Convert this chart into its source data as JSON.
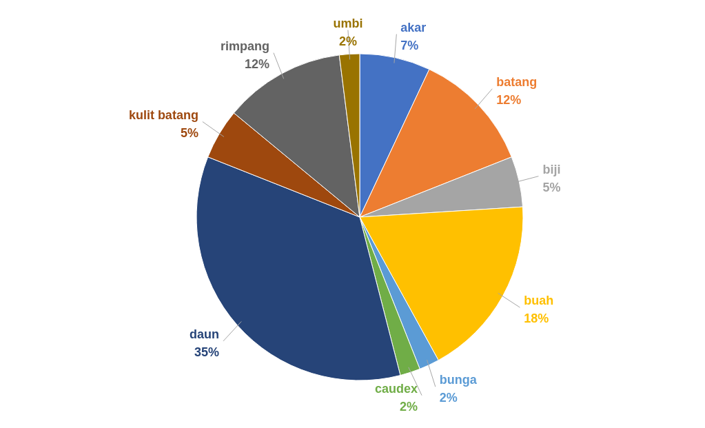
{
  "chart_data": {
    "type": "pie",
    "categories": [
      "akar",
      "batang",
      "biji",
      "buah",
      "bunga",
      "caudex",
      "daun",
      "kulit batang",
      "rimpang",
      "umbi"
    ],
    "values": [
      7,
      12,
      5,
      18,
      2,
      2,
      35,
      5,
      12,
      2
    ],
    "value_labels": [
      "7%",
      "12%",
      "5%",
      "18%",
      "2%",
      "2%",
      "35%",
      "5%",
      "12%",
      "2%"
    ],
    "colors": [
      "#4472c4",
      "#ed7d31",
      "#a5a5a5",
      "#ffc000",
      "#5b9bd5",
      "#70ad47",
      "#264478",
      "#9e480e",
      "#636363",
      "#997300"
    ]
  }
}
